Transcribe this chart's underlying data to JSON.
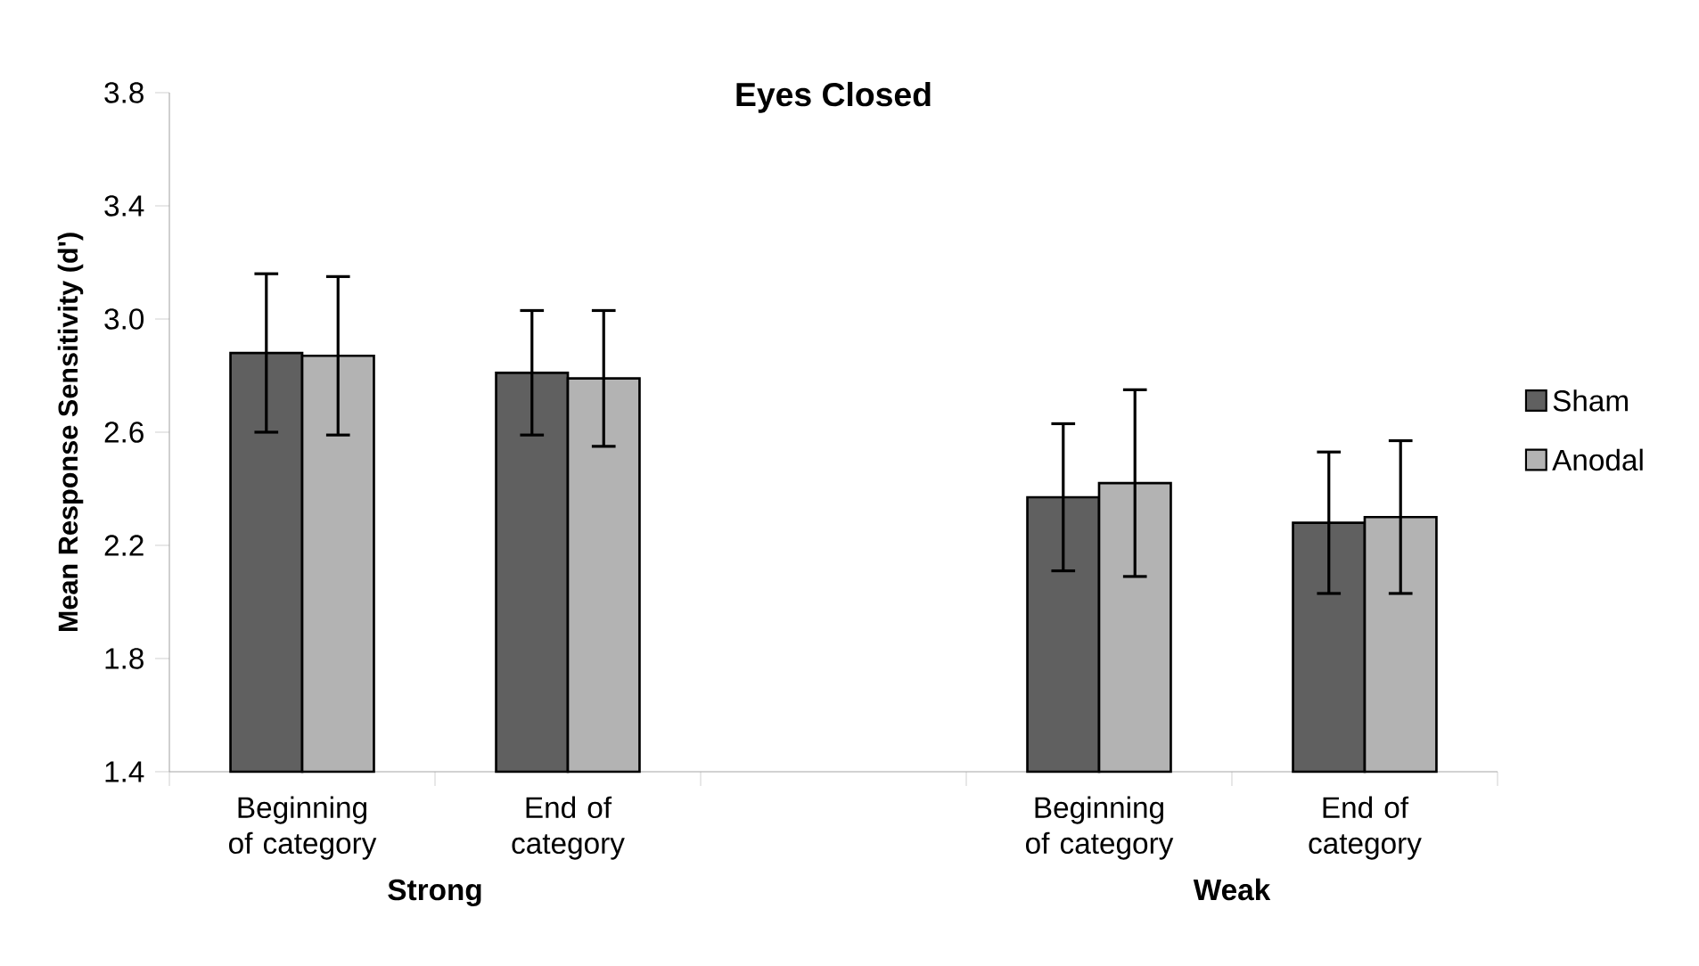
{
  "chart_data": {
    "type": "bar",
    "title": "Eyes Closed",
    "ylabel": "Mean Response Sensitivity (d')",
    "categories": [
      "Beginning of category",
      "End of category",
      null,
      "Beginning of category",
      "End of category"
    ],
    "series": [
      {
        "name": "Sham",
        "color": "#606060",
        "values": [
          2.88,
          2.81,
          null,
          2.37,
          2.28
        ],
        "errors": [
          0.28,
          0.22,
          null,
          0.26,
          0.25
        ]
      },
      {
        "name": "Anodal",
        "color": "#b3b3b3",
        "values": [
          2.87,
          2.79,
          null,
          2.42,
          2.3
        ],
        "errors": [
          0.28,
          0.24,
          null,
          0.33,
          0.27
        ]
      }
    ],
    "ylim": [
      1.4,
      3.8
    ],
    "yticks": [
      1.4,
      1.8,
      2.2,
      2.6,
      {
        "value": 3.0,
        "label": "3.0"
      },
      3.4,
      3.8
    ],
    "annotations": [
      "Strong",
      "Weak"
    ],
    "grid": false,
    "legend": "right"
  }
}
